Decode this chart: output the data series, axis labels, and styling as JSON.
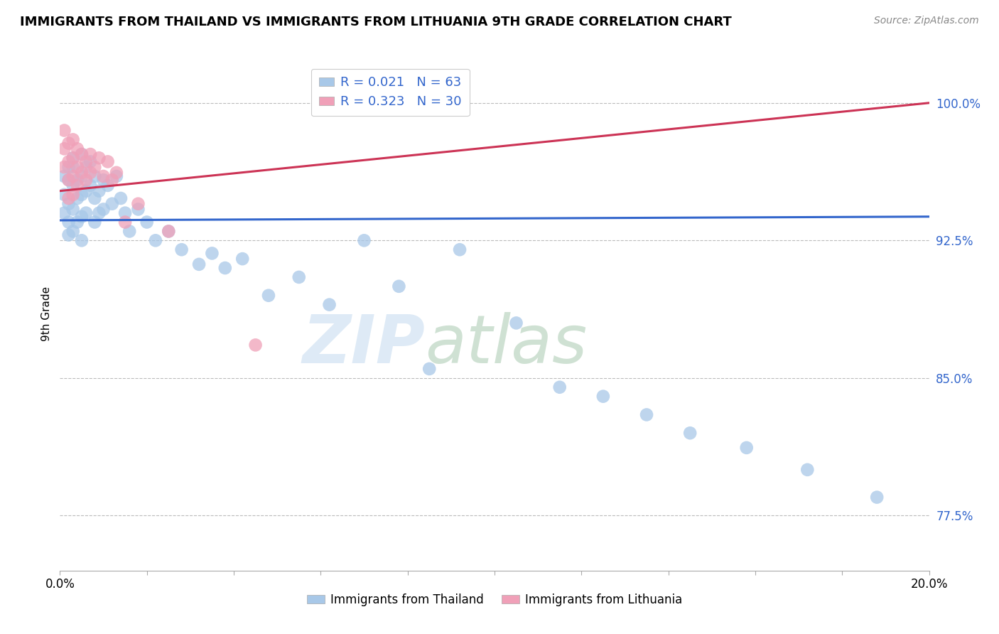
{
  "title": "IMMIGRANTS FROM THAILAND VS IMMIGRANTS FROM LITHUANIA 9TH GRADE CORRELATION CHART",
  "source": "Source: ZipAtlas.com",
  "ylabel": "9th Grade",
  "r_blue": 0.021,
  "n_blue": 63,
  "r_pink": 0.323,
  "n_pink": 30,
  "blue_color": "#a8c8e8",
  "pink_color": "#f0a0b8",
  "blue_line_color": "#3366cc",
  "pink_line_color": "#cc3355",
  "watermark_zip": "ZIP",
  "watermark_atlas": "atlas",
  "xmin": 0.0,
  "xmax": 0.2,
  "ymin": 0.745,
  "ymax": 1.025,
  "blue_scatter_x": [
    0.001,
    0.001,
    0.001,
    0.002,
    0.002,
    0.002,
    0.002,
    0.002,
    0.003,
    0.003,
    0.003,
    0.003,
    0.003,
    0.004,
    0.004,
    0.004,
    0.005,
    0.005,
    0.005,
    0.005,
    0.005,
    0.006,
    0.006,
    0.006,
    0.007,
    0.007,
    0.008,
    0.008,
    0.008,
    0.009,
    0.009,
    0.01,
    0.01,
    0.011,
    0.012,
    0.013,
    0.014,
    0.015,
    0.016,
    0.018,
    0.02,
    0.022,
    0.025,
    0.028,
    0.032,
    0.035,
    0.038,
    0.042,
    0.048,
    0.055,
    0.062,
    0.07,
    0.078,
    0.085,
    0.092,
    0.105,
    0.115,
    0.125,
    0.135,
    0.145,
    0.158,
    0.172,
    0.188
  ],
  "blue_scatter_y": [
    0.96,
    0.95,
    0.94,
    0.965,
    0.958,
    0.945,
    0.935,
    0.928,
    0.97,
    0.955,
    0.942,
    0.93,
    0.965,
    0.958,
    0.948,
    0.935,
    0.972,
    0.96,
    0.95,
    0.938,
    0.925,
    0.965,
    0.952,
    0.94,
    0.968,
    0.955,
    0.96,
    0.948,
    0.935,
    0.952,
    0.94,
    0.958,
    0.942,
    0.955,
    0.945,
    0.96,
    0.948,
    0.94,
    0.93,
    0.942,
    0.935,
    0.925,
    0.93,
    0.92,
    0.912,
    0.918,
    0.91,
    0.915,
    0.895,
    0.905,
    0.89,
    0.925,
    0.9,
    0.855,
    0.92,
    0.88,
    0.845,
    0.84,
    0.83,
    0.82,
    0.812,
    0.8,
    0.785
  ],
  "pink_scatter_x": [
    0.001,
    0.001,
    0.001,
    0.002,
    0.002,
    0.002,
    0.002,
    0.003,
    0.003,
    0.003,
    0.003,
    0.004,
    0.004,
    0.004,
    0.005,
    0.005,
    0.006,
    0.006,
    0.007,
    0.007,
    0.008,
    0.009,
    0.01,
    0.011,
    0.012,
    0.013,
    0.015,
    0.018,
    0.025,
    0.045
  ],
  "pink_scatter_y": [
    0.985,
    0.975,
    0.965,
    0.978,
    0.968,
    0.958,
    0.948,
    0.98,
    0.97,
    0.96,
    0.95,
    0.975,
    0.965,
    0.955,
    0.972,
    0.962,
    0.968,
    0.958,
    0.972,
    0.962,
    0.965,
    0.97,
    0.96,
    0.968,
    0.958,
    0.962,
    0.935,
    0.945,
    0.93,
    0.868
  ],
  "blue_trend_x": [
    0.0,
    0.2
  ],
  "blue_trend_y": [
    0.936,
    0.938
  ],
  "pink_trend_x": [
    0.0,
    0.2
  ],
  "pink_trend_y": [
    0.952,
    1.0
  ]
}
